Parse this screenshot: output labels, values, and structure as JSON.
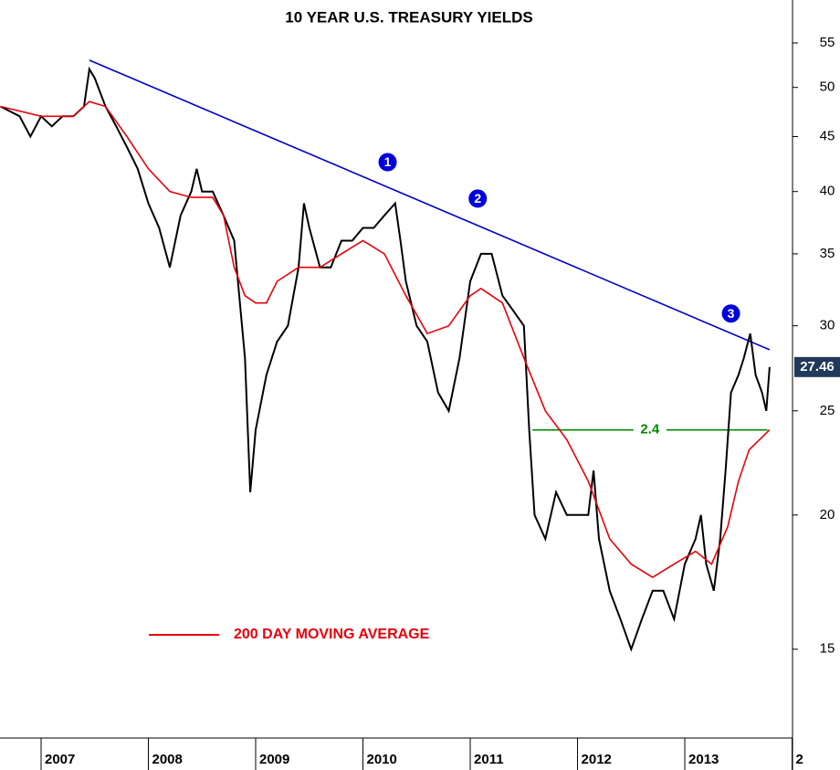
{
  "chart_data": {
    "type": "line",
    "title": "10 YEAR U.S. TREASURY YIELDS",
    "log_scale": true,
    "grid": false,
    "xlim": [
      2006.617,
      2014.004
    ],
    "ylim": [
      12.4,
      60.3
    ],
    "xticks": [
      2007,
      2008,
      2009,
      2010,
      2011,
      2012,
      2013,
      {
        "value": 2014,
        "label": "2"
      }
    ],
    "yticks": [
      15,
      20,
      25,
      30,
      35,
      40,
      45,
      50,
      55
    ],
    "series": [
      {
        "color": "#000000",
        "x": [
          2006.62,
          2006.8,
          2006.9,
          2007.0,
          2007.1,
          2007.2,
          2007.3,
          2007.4,
          2007.45,
          2007.5,
          2007.6,
          2007.7,
          2007.8,
          2007.9,
          2008.0,
          2008.1,
          2008.2,
          2008.3,
          2008.4,
          2008.45,
          2008.5,
          2008.6,
          2008.7,
          2008.8,
          2008.9,
          2008.95,
          2009.0,
          2009.1,
          2009.2,
          2009.3,
          2009.4,
          2009.45,
          2009.5,
          2009.6,
          2009.7,
          2009.8,
          2009.9,
          2010.0,
          2010.1,
          2010.2,
          2010.3,
          2010.35,
          2010.4,
          2010.5,
          2010.6,
          2010.7,
          2010.8,
          2010.9,
          2011.0,
          2011.1,
          2011.2,
          2011.3,
          2011.4,
          2011.5,
          2011.55,
          2011.6,
          2011.7,
          2011.8,
          2011.9,
          2012.0,
          2012.1,
          2012.15,
          2012.2,
          2012.3,
          2012.4,
          2012.5,
          2012.6,
          2012.7,
          2012.8,
          2012.9,
          2013.0,
          2013.1,
          2013.15,
          2013.2,
          2013.27,
          2013.33,
          2013.38,
          2013.43,
          2013.5,
          2013.55,
          2013.61,
          2013.66,
          2013.72,
          2013.76,
          2013.79
        ],
        "values": [
          48,
          47,
          45,
          47,
          46,
          47,
          47,
          48,
          52,
          51,
          48,
          46,
          44,
          42,
          39,
          37,
          34,
          38,
          40,
          42,
          40,
          40,
          38,
          36,
          28,
          21,
          24,
          27,
          29,
          30,
          34,
          39,
          37,
          34,
          34,
          36,
          36,
          37,
          37,
          38,
          39,
          36,
          33,
          30,
          29,
          26,
          25,
          28,
          33,
          35,
          35,
          32,
          31,
          30,
          24,
          20,
          19,
          21,
          20,
          20,
          20,
          22,
          19,
          17,
          16,
          15,
          16,
          17,
          17,
          16,
          18,
          19,
          20,
          18,
          17,
          19,
          22,
          26,
          27,
          28,
          29.5,
          27,
          26,
          25,
          27.46
        ]
      },
      {
        "name": "200 DAY MOVING AVERAGE",
        "color": "#e8000b",
        "x": [
          2006.62,
          2007.0,
          2007.3,
          2007.45,
          2007.6,
          2007.8,
          2008.0,
          2008.2,
          2008.4,
          2008.6,
          2008.7,
          2008.8,
          2008.9,
          2009.0,
          2009.1,
          2009.2,
          2009.4,
          2009.6,
          2009.8,
          2010.0,
          2010.2,
          2010.4,
          2010.6,
          2010.8,
          2011.0,
          2011.1,
          2011.3,
          2011.5,
          2011.7,
          2011.9,
          2012.1,
          2012.3,
          2012.5,
          2012.7,
          2012.9,
          2013.1,
          2013.25,
          2013.4,
          2013.5,
          2013.6,
          2013.79
        ],
        "values": [
          48,
          47,
          47,
          48.5,
          48,
          45,
          42,
          40,
          39.5,
          39.5,
          38,
          34,
          32,
          31.5,
          31.5,
          33,
          34,
          34,
          35,
          36,
          35,
          32,
          29.5,
          30,
          32,
          32.5,
          31.5,
          28,
          25,
          23.5,
          21.5,
          19,
          18,
          17.5,
          18,
          18.5,
          18,
          19.5,
          21.5,
          23,
          24
        ]
      }
    ],
    "trend_line": {
      "color": "#0000cc",
      "x": [
        2007.45,
        2013.79
      ],
      "values": [
        53,
        28.5
      ]
    },
    "level_line": {
      "color": "#008800",
      "value": 24,
      "label": "2.4",
      "x": [
        2011.58,
        2013.77
      ]
    },
    "markers": [
      {
        "label": "1",
        "x": 2010.23,
        "y": 42.6
      },
      {
        "label": "2",
        "x": 2011.07,
        "y": 39.4
      },
      {
        "label": "3",
        "x": 2013.43,
        "y": 30.8
      }
    ],
    "legend": "bottom-left"
  }
}
